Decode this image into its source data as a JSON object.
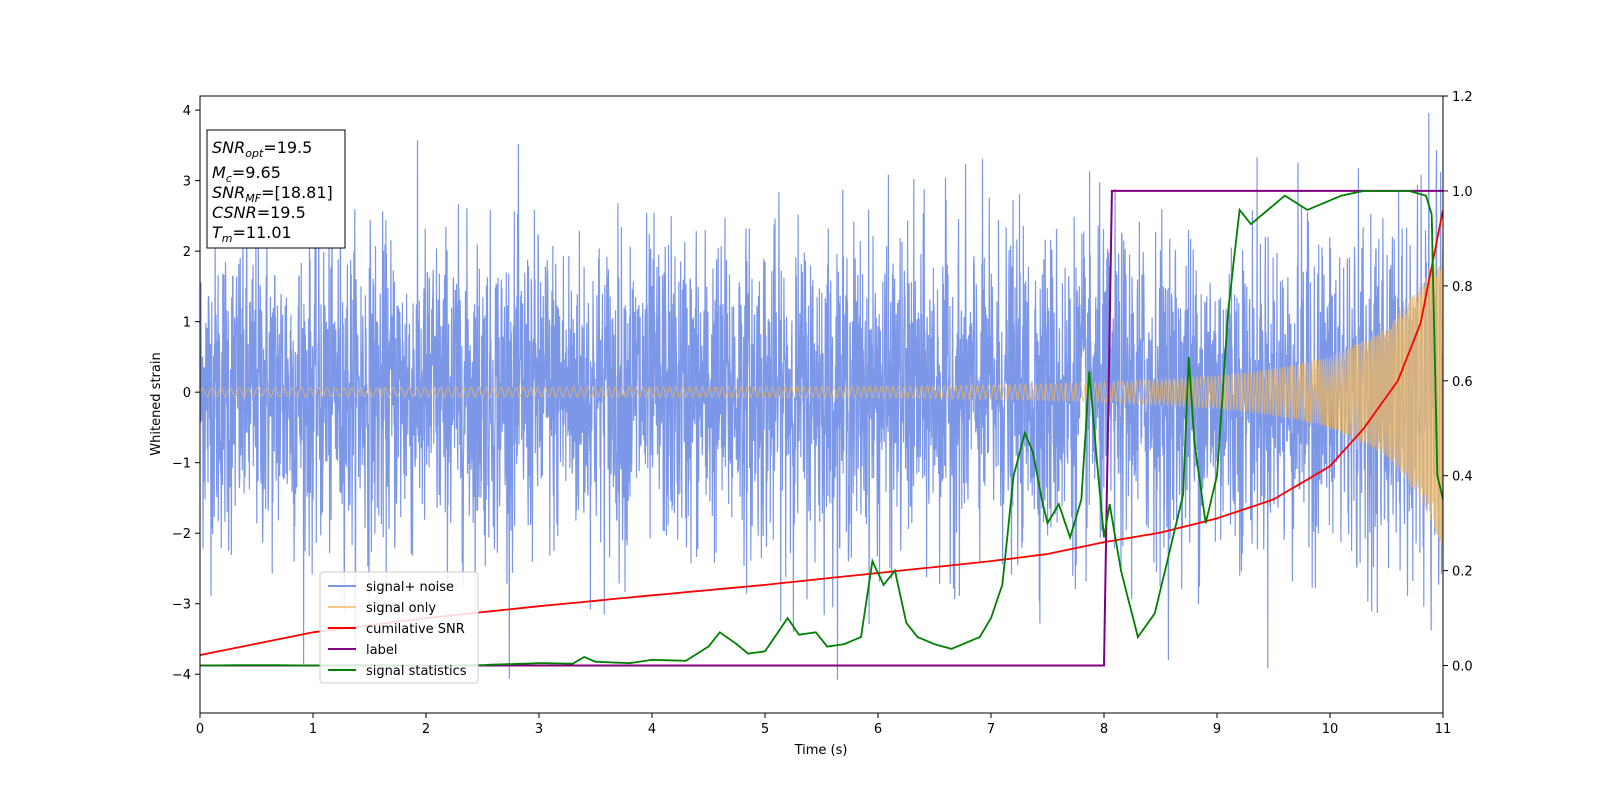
{
  "chart_data": {
    "type": "line",
    "xlabel": "Time (s)",
    "ylabel": "Whitened strain",
    "xlim": [
      0,
      11
    ],
    "ylim": [
      -4.55,
      4.2
    ],
    "y2lim": [
      -0.1,
      1.2
    ],
    "x_ticks": [
      "0",
      "1",
      "2",
      "3",
      "4",
      "5",
      "6",
      "7",
      "8",
      "9",
      "10",
      "11"
    ],
    "y_ticks": [
      "4",
      "3",
      "2",
      "1",
      "0",
      "−1",
      "−2",
      "−3",
      "−4"
    ],
    "y2_ticks": [
      "1.2",
      "1.0",
      "0.8",
      "0.6",
      "0.4",
      "0.2",
      "0.0"
    ],
    "info_box": [
      {
        "sym": "SNR",
        "sub": "opt",
        "val": "=19.5"
      },
      {
        "sym": "M",
        "sub": "c",
        "val": "=9.65"
      },
      {
        "sym": "SNR",
        "sub": "MF",
        "val": "=[18.81]"
      },
      {
        "sym": "CSNR",
        "sub": "",
        "val": "=19.5"
      },
      {
        "sym": "T",
        "sub": "m",
        "val": "=11.01"
      }
    ],
    "legend": {
      "placement": "lower-left",
      "entries": [
        "signal+ noise",
        "signal only",
        "cumilative SNR",
        "label",
        "signal statistics"
      ]
    },
    "colors": {
      "noise": "#6f8ce6",
      "signal": "#f0b860",
      "snr": "#ff0000",
      "label": "#800080",
      "stats": "#008000"
    },
    "series": [
      {
        "name": "signal+ noise",
        "axis": "left",
        "style": "dense noisy oscillation, roughly -2.3 to 2.3 with spikes to about +/-3.6",
        "noise_amplitude": 1.1
      },
      {
        "name": "signal only",
        "axis": "left",
        "style": "chirp with growing amplitude",
        "envelope_x": [
          0,
          6,
          7,
          8,
          9,
          9.5,
          10,
          10.5,
          10.8,
          11
        ],
        "envelope_y": [
          0.06,
          0.08,
          0.1,
          0.14,
          0.23,
          0.33,
          0.5,
          0.9,
          1.5,
          2.2
        ]
      },
      {
        "name": "cumilative SNR",
        "axis": "right",
        "x": [
          0,
          1,
          2,
          3,
          4,
          5,
          6,
          7,
          7.5,
          8,
          8.5,
          9,
          9.5,
          10,
          10.3,
          10.6,
          10.8,
          11
        ],
        "y": [
          0.022,
          0.07,
          0.1,
          0.125,
          0.148,
          0.17,
          0.195,
          0.22,
          0.235,
          0.26,
          0.28,
          0.31,
          0.35,
          0.42,
          0.5,
          0.6,
          0.72,
          0.96
        ]
      },
      {
        "name": "label",
        "axis": "right",
        "x": [
          0,
          8.0,
          8.07,
          11
        ],
        "y": [
          0,
          0,
          1,
          1
        ]
      },
      {
        "name": "signal statistics",
        "axis": "right",
        "x": [
          0,
          0.5,
          1,
          1.5,
          2,
          2.5,
          3,
          3.3,
          3.4,
          3.5,
          3.8,
          4,
          4.3,
          4.5,
          4.6,
          4.75,
          4.85,
          5,
          5.2,
          5.3,
          5.45,
          5.55,
          5.7,
          5.85,
          5.95,
          6.05,
          6.15,
          6.25,
          6.35,
          6.5,
          6.65,
          6.8,
          6.9,
          7.0,
          7.1,
          7.2,
          7.3,
          7.37,
          7.45,
          7.5,
          7.6,
          7.7,
          7.8,
          7.87,
          7.93,
          8.0,
          8.05,
          8.15,
          8.3,
          8.45,
          8.55,
          8.7,
          8.75,
          8.8,
          8.9,
          9.0,
          9.1,
          9.2,
          9.3,
          9.4,
          9.6,
          9.8,
          10.0,
          10.1,
          10.3,
          10.5,
          10.7,
          10.85,
          10.9,
          10.95,
          11.0
        ],
        "y": [
          0,
          0.001,
          0,
          0.001,
          0,
          0.001,
          0.005,
          0.004,
          0.018,
          0.008,
          0.005,
          0.012,
          0.01,
          0.04,
          0.07,
          0.045,
          0.025,
          0.03,
          0.1,
          0.065,
          0.07,
          0.04,
          0.045,
          0.06,
          0.22,
          0.17,
          0.2,
          0.09,
          0.06,
          0.045,
          0.035,
          0.05,
          0.06,
          0.1,
          0.17,
          0.4,
          0.49,
          0.45,
          0.35,
          0.3,
          0.34,
          0.27,
          0.35,
          0.62,
          0.45,
          0.27,
          0.34,
          0.2,
          0.06,
          0.11,
          0.21,
          0.36,
          0.65,
          0.47,
          0.3,
          0.4,
          0.75,
          0.96,
          0.93,
          0.95,
          0.99,
          0.96,
          0.98,
          0.99,
          1.0,
          1.0,
          1.0,
          0.99,
          0.95,
          0.4,
          0.35
        ]
      }
    ]
  }
}
